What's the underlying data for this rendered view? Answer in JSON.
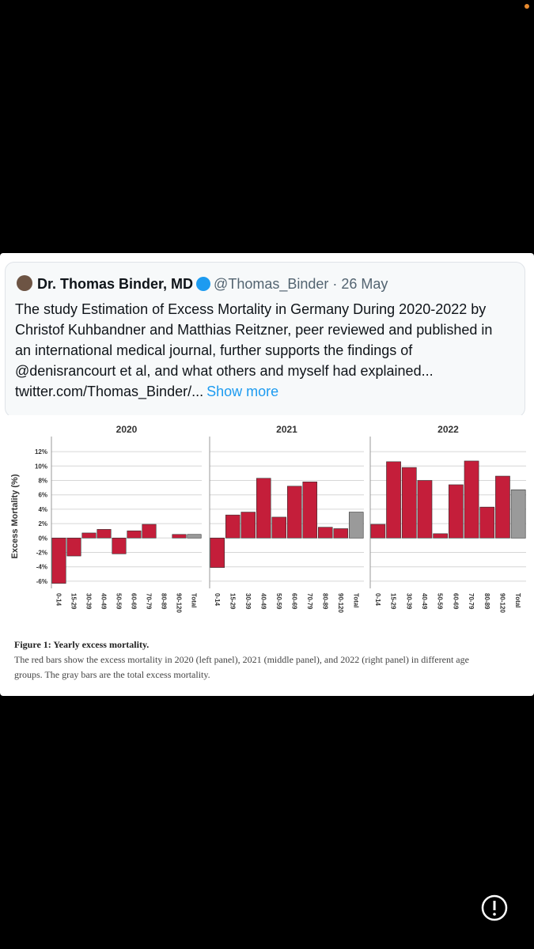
{
  "tweet": {
    "author": "Dr. Thomas Binder, MD",
    "handle_line": "@Thomas_Binder · 26 May",
    "body": "The study Estimation of Excess Mortality in Germany During 2020-2022 by Christof Kuhbandner and Matthias Reitzner, peer reviewed and published in an international medical journal, further supports the findings of @denisrancourt et al, and what others and myself had explained...  twitter.com/Thomas_Binder/...",
    "show_more": "Show more"
  },
  "caption": {
    "title": "Figure 1: Yearly excess mortality.",
    "text": "The red bars show the excess mortality in 2020 (left panel), 2021 (middle panel), and 2022 (right panel) in different age groups. The gray bars are the total excess mortality."
  },
  "chart_data": [
    {
      "type": "bar",
      "title": "2020",
      "ylabel": "Excess Mortality (%)",
      "categories": [
        "0-14",
        "15-29",
        "30-39",
        "40-49",
        "50-59",
        "60-69",
        "70-79",
        "80-89",
        "90-120",
        "Total"
      ],
      "values": [
        -6.3,
        -2.5,
        0.7,
        1.2,
        -2.2,
        1.0,
        1.9,
        0.0,
        0.5,
        0.5
      ],
      "colors": [
        "#c41e3a",
        "#c41e3a",
        "#c41e3a",
        "#c41e3a",
        "#c41e3a",
        "#c41e3a",
        "#c41e3a",
        "#c41e3a",
        "#c41e3a",
        "#9a9a9a"
      ],
      "ylim": [
        -7,
        13
      ],
      "yticks": [
        {
          "value": -6,
          "label": "-6%"
        },
        {
          "value": -4,
          "label": "-4%"
        },
        {
          "value": -2,
          "label": "-2%"
        },
        {
          "value": 0,
          "label": "0%"
        },
        {
          "value": 2,
          "label": "2%"
        },
        {
          "value": 4,
          "label": "4%"
        },
        {
          "value": 6,
          "label": "6%"
        },
        {
          "value": 8,
          "label": "8%"
        },
        {
          "value": 10,
          "label": "10%"
        },
        {
          "value": 12,
          "label": "12%"
        }
      ],
      "grid": true
    },
    {
      "type": "bar",
      "title": "2021",
      "categories": [
        "0-14",
        "15-29",
        "30-39",
        "40-49",
        "50-59",
        "60-69",
        "70-79",
        "80-89",
        "90-120",
        "Total"
      ],
      "values": [
        -4.1,
        3.2,
        3.6,
        8.3,
        2.9,
        7.2,
        7.8,
        1.5,
        1.3,
        3.6
      ],
      "colors": [
        "#c41e3a",
        "#c41e3a",
        "#c41e3a",
        "#c41e3a",
        "#c41e3a",
        "#c41e3a",
        "#c41e3a",
        "#c41e3a",
        "#c41e3a",
        "#9a9a9a"
      ],
      "ylim": [
        -7,
        13
      ],
      "grid": true
    },
    {
      "type": "bar",
      "title": "2022",
      "categories": [
        "0-14",
        "15-29",
        "30-39",
        "40-49",
        "50-59",
        "60-69",
        "70-79",
        "80-89",
        "90-120",
        "Total"
      ],
      "values": [
        1.9,
        10.6,
        9.8,
        8.0,
        0.6,
        7.4,
        10.7,
        4.3,
        8.6,
        6.7
      ],
      "colors": [
        "#c41e3a",
        "#c41e3a",
        "#c41e3a",
        "#c41e3a",
        "#c41e3a",
        "#c41e3a",
        "#c41e3a",
        "#c41e3a",
        "#c41e3a",
        "#9a9a9a"
      ],
      "ylim": [
        -7,
        13
      ],
      "grid": true
    }
  ]
}
